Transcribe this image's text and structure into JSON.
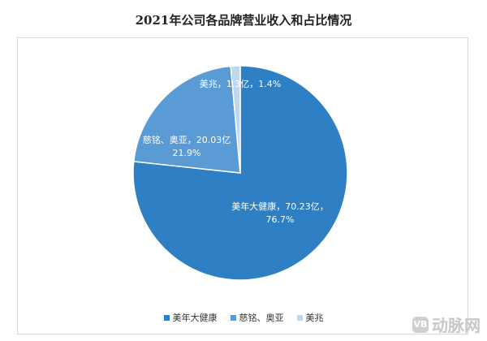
{
  "chart_data": {
    "type": "pie",
    "title": "2021年公司各品牌营业收入和占比情况",
    "categories": [
      "美年大健康",
      "慈铭、奥亚",
      "美兆"
    ],
    "values": [
      70.23,
      20.03,
      1.3
    ],
    "percent_labels": [
      "76.7%",
      "21.9%",
      "1.4%"
    ],
    "data_labels": [
      "美年大健康，70.23亿，",
      "慈铭、奥亚，20.03亿",
      "美兆，1.3亿，1.4%"
    ],
    "colors": [
      "#2e7fc3",
      "#5b9bd5",
      "#bdd7ee"
    ],
    "legend": [
      "美年大健康",
      "慈铭、奥亚",
      "美兆"
    ],
    "legend_position": "bottom"
  },
  "watermark": {
    "text": "动脉网",
    "logo_text": "VB"
  }
}
